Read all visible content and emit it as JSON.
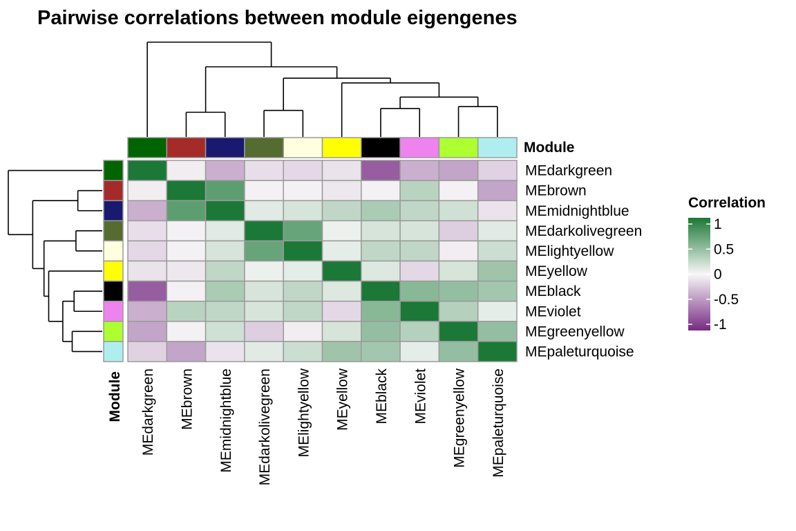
{
  "chart_data": {
    "type": "heatmap",
    "title": "Pairwise correlations between module eigengenes",
    "rows": [
      "MEdarkgreen",
      "MEbrown",
      "MEmidnightblue",
      "MEdarkolivegreen",
      "MElightyellow",
      "MEyellow",
      "MEblack",
      "MEviolet",
      "MEgreenyellow",
      "MEpaleturquoise"
    ],
    "columns": [
      "MEdarkgreen",
      "MEbrown",
      "MEmidnightblue",
      "MEdarkolivegreen",
      "MElightyellow",
      "MEyellow",
      "MEblack",
      "MEviolet",
      "MEgreenyellow",
      "MEpaleturquoise"
    ],
    "module_colors": [
      "#006400",
      "#A52A2A",
      "#191970",
      "#556B2F",
      "#FFFFE0",
      "#FFFF00",
      "#000000",
      "#EE82EE",
      "#ADFF2F",
      "#AFEEEE"
    ],
    "values": [
      [
        1.0,
        -0.05,
        -0.35,
        -0.12,
        -0.15,
        -0.1,
        -0.75,
        -0.35,
        -0.4,
        -0.18
      ],
      [
        -0.05,
        1.0,
        0.7,
        -0.03,
        -0.03,
        -0.08,
        -0.03,
        0.28,
        -0.03,
        -0.4
      ],
      [
        -0.35,
        0.7,
        1.0,
        0.1,
        0.15,
        0.25,
        0.35,
        0.25,
        0.18,
        -0.1
      ],
      [
        -0.12,
        -0.03,
        0.1,
        1.0,
        0.65,
        0.05,
        0.15,
        0.15,
        -0.2,
        0.1
      ],
      [
        -0.15,
        -0.03,
        0.15,
        0.65,
        1.0,
        0.08,
        0.25,
        0.25,
        -0.05,
        0.2
      ],
      [
        -0.1,
        -0.08,
        0.25,
        0.05,
        0.08,
        1.0,
        0.12,
        -0.15,
        0.15,
        0.4
      ],
      [
        -0.75,
        -0.03,
        0.35,
        0.15,
        0.25,
        0.12,
        1.0,
        0.5,
        0.45,
        0.38
      ],
      [
        -0.35,
        0.28,
        0.25,
        0.15,
        0.25,
        -0.15,
        0.5,
        1.0,
        0.3,
        0.08
      ],
      [
        -0.4,
        -0.03,
        0.18,
        -0.2,
        -0.05,
        0.15,
        0.45,
        0.3,
        1.0,
        0.45
      ],
      [
        -0.18,
        -0.4,
        -0.1,
        0.1,
        0.2,
        0.4,
        0.38,
        0.08,
        0.45,
        1.0
      ]
    ],
    "annotation_label": "Module",
    "legend": {
      "title": "Correlation",
      "ticks": [
        "1",
        "0.5",
        "0",
        "-0.5",
        "-1"
      ],
      "tick_values": [
        1,
        0.5,
        0,
        -0.5,
        -1
      ],
      "range": [
        -1,
        1
      ],
      "colors": {
        "low": "#762A83",
        "mid": "#F7F7F7",
        "high": "#1B7837"
      },
      "placement": "right"
    },
    "dendrogram": {
      "order": [
        "MEdarkgreen",
        "MEbrown",
        "MEmidnightblue",
        "MEdarkolivegreen",
        "MElightyellow",
        "MEyellow",
        "MEblack",
        "MEviolet",
        "MEgreenyellow",
        "MEpaleturquoise"
      ],
      "merges": [
        {
          "left": 1,
          "right": 2,
          "height": 0.26
        },
        {
          "left": 3,
          "right": 4,
          "height": 0.28
        },
        {
          "left": 6,
          "right": 7,
          "height": 0.3
        },
        {
          "left": 8,
          "right": 9,
          "height": 0.32
        },
        {
          "node": "m3",
          "node2": "m4",
          "height": 0.42
        },
        {
          "leaf": 5,
          "node": "m5",
          "height": 0.57
        },
        {
          "node": "m2",
          "node2": "m6",
          "height": 0.62
        },
        {
          "node": "m1",
          "node2": "m7",
          "height": 0.74
        },
        {
          "leaf": 0,
          "node": "m8",
          "height": 1.0
        }
      ]
    }
  }
}
